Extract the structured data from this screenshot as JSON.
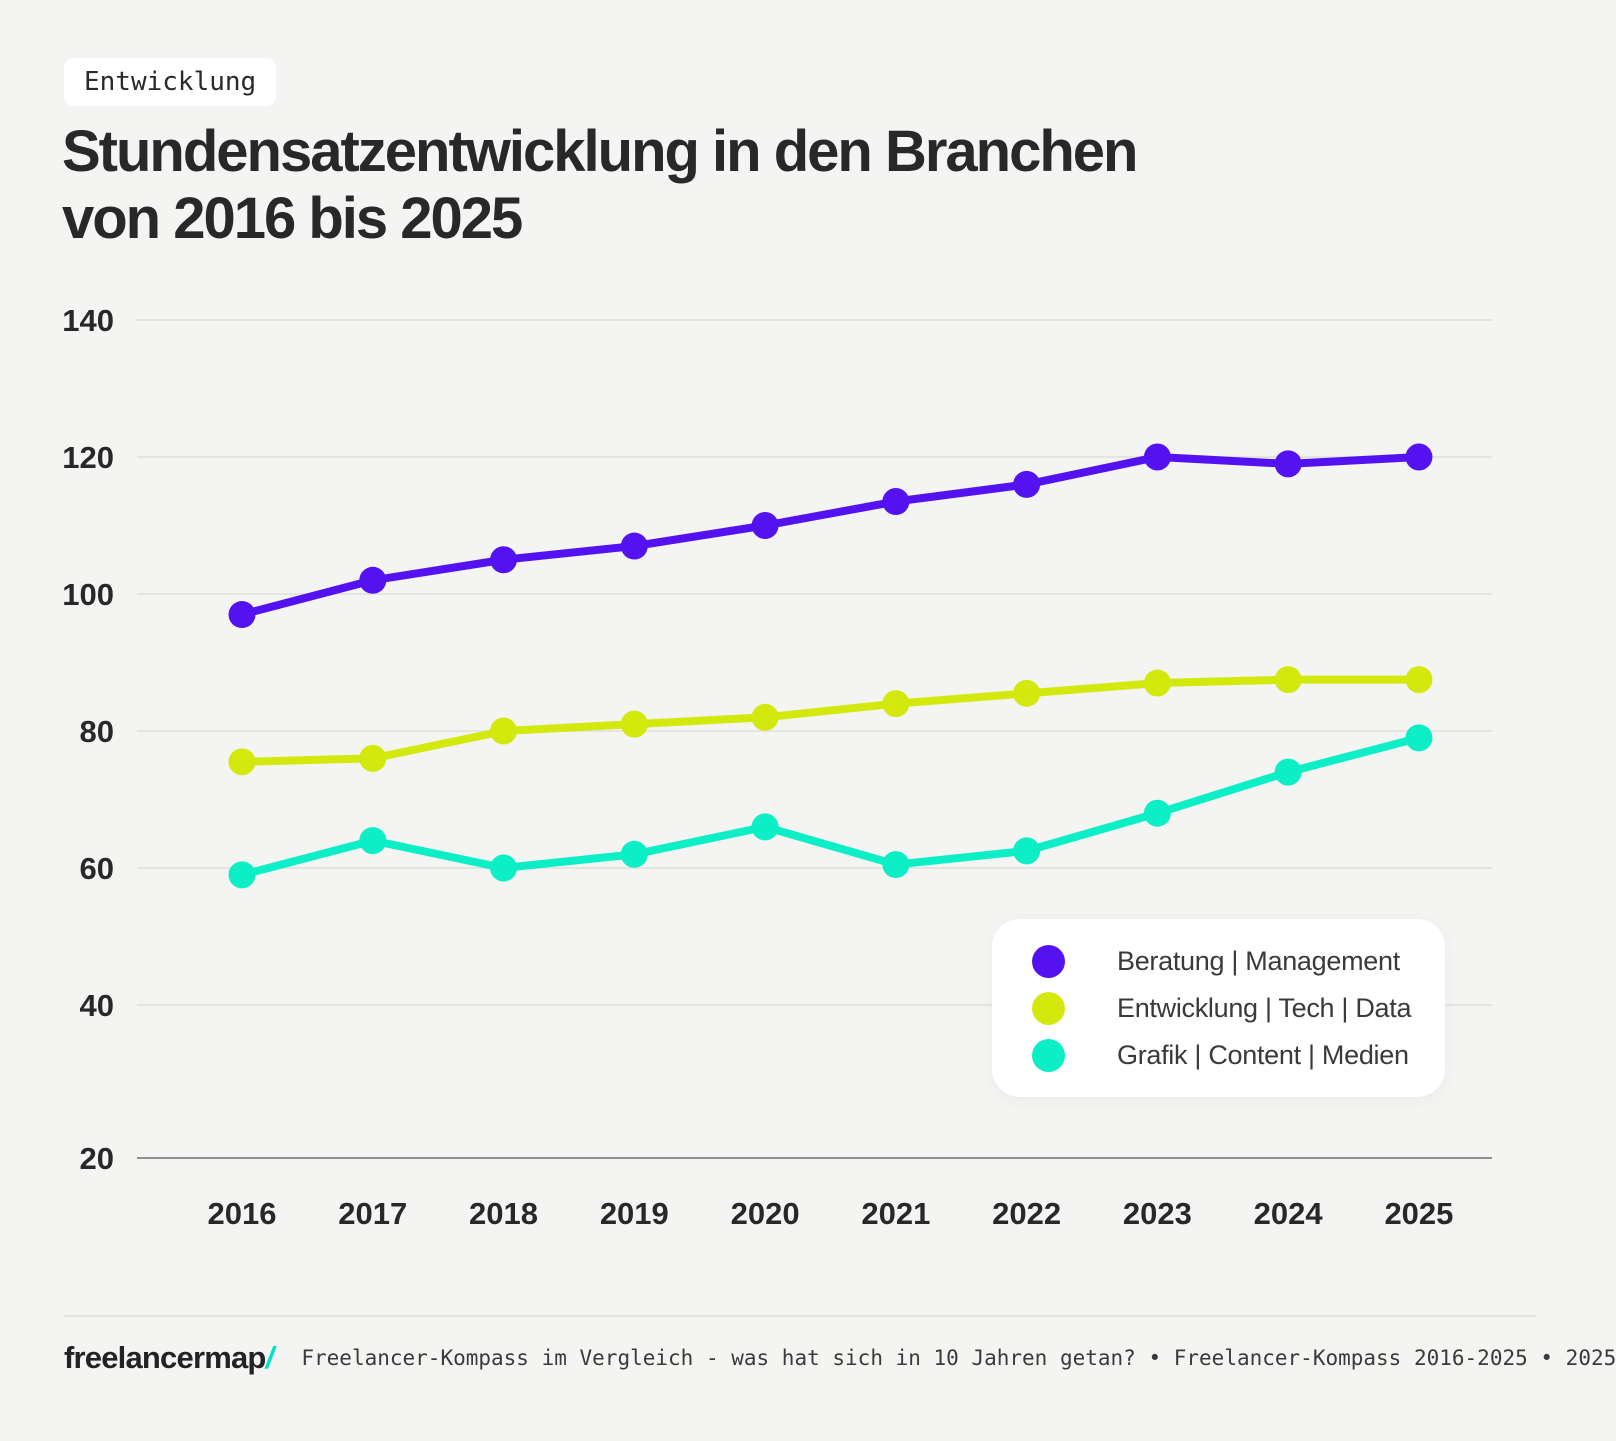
{
  "badge": {
    "label": "Entwicklung"
  },
  "title": {
    "lines": [
      "Stundensatzentwicklung in den Branchen",
      "von 2016 bis 2025"
    ]
  },
  "chart_data": {
    "type": "line",
    "x": [
      2016,
      2017,
      2018,
      2019,
      2020,
      2021,
      2022,
      2023,
      2024,
      2025
    ],
    "series": [
      {
        "name": "Beratung | Management",
        "color": "#5512f0",
        "values": [
          97,
          102,
          105,
          107,
          110,
          113.5,
          116,
          120,
          119,
          120
        ]
      },
      {
        "name": "Entwicklung | Tech | Data",
        "color": "#d3e90e",
        "values": [
          75.5,
          76,
          80,
          81,
          82,
          84,
          85.5,
          87,
          87.5,
          87.5
        ]
      },
      {
        "name": "Grafik | Content | Medien",
        "color": "#0beec6",
        "values": [
          59,
          64,
          60,
          62,
          66,
          60.5,
          62.5,
          68,
          74,
          79
        ]
      }
    ],
    "yticks": [
      140,
      120,
      100,
      80,
      60,
      40,
      20
    ],
    "ylim": [
      20,
      145
    ],
    "xlabel": "",
    "ylabel": "",
    "grid": true,
    "legend_position": "inside-bottom-right"
  },
  "footer": {
    "logo_text": "freelancermap",
    "logo_slash": "/",
    "text": "Freelancer-Kompass im Vergleich - was hat sich in 10 Jahren getan? • Freelancer-Kompass 2016-2025 • 2025"
  }
}
